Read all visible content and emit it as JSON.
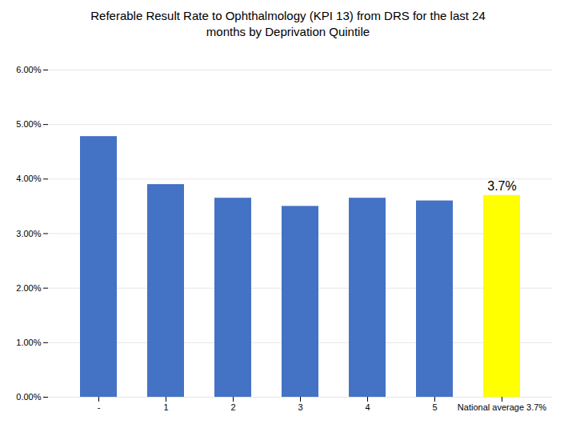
{
  "chart_data": {
    "type": "bar",
    "title": "Referable Result Rate to Ophthalmology (KPI 13) from DRS for the last 24\nmonths by Deprivation Quintile",
    "categories": [
      "-",
      "1",
      "2",
      "3",
      "4",
      "5",
      "National average 3.7%"
    ],
    "values": [
      0.0478,
      0.039,
      0.0365,
      0.035,
      0.0365,
      0.036,
      0.037
    ],
    "colors": [
      "#4472C4",
      "#4472C4",
      "#4472C4",
      "#4472C4",
      "#4472C4",
      "#4472C4",
      "#FFFF00"
    ],
    "ylim": [
      0,
      0.06
    ],
    "yticks": [
      {
        "value": 0.0,
        "label": "0.00%"
      },
      {
        "value": 0.01,
        "label": "1.00%"
      },
      {
        "value": 0.02,
        "label": "2.00%"
      },
      {
        "value": 0.03,
        "label": "3.00%"
      },
      {
        "value": 0.04,
        "label": "4.00%"
      },
      {
        "value": 0.05,
        "label": "5.00%"
      },
      {
        "value": 0.06,
        "label": "6.00%"
      }
    ],
    "grid": true,
    "annotations": [
      {
        "category": "National average 3.7%",
        "value": 0.037,
        "text": "3.7%"
      }
    ]
  }
}
